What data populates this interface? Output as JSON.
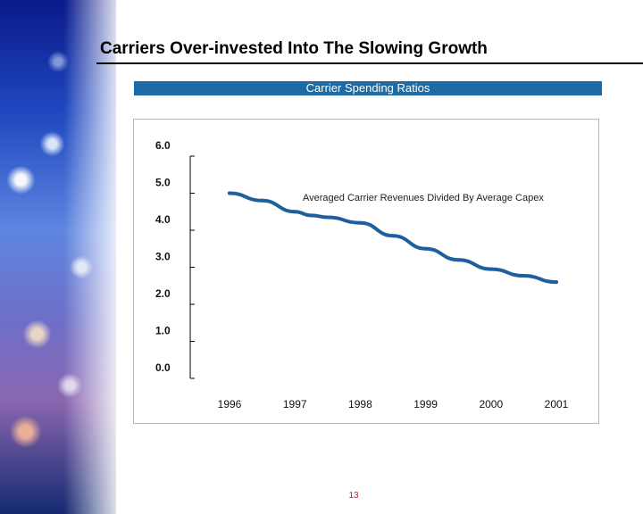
{
  "slide": {
    "title": "Carriers Over-invested Into The Slowing Growth",
    "header": "Carrier Spending Ratios",
    "page_number": "13"
  },
  "colors": {
    "header_bar": "#1e6aa5",
    "series_line": "#1e5f9e",
    "page_number": "#d31a1a"
  },
  "chart_data": {
    "type": "line",
    "title": "Carrier Spending Ratios",
    "xlabel": "",
    "ylabel": "",
    "x_labels": [
      "1996",
      "1997",
      "1998",
      "1999",
      "2000",
      "2001"
    ],
    "y_ticks": [
      "6.0",
      "5.0",
      "4.0",
      "3.0",
      "2.0",
      "1.0",
      "0.0"
    ],
    "ylim": [
      0,
      6
    ],
    "xlim": [
      1996,
      2001
    ],
    "annotation": "Averaged Carrier Revenues Divided By Average Capex",
    "grid": false,
    "legend": "none",
    "series": [
      {
        "x": [
          1996.0,
          1996.5,
          1997.0,
          1997.25,
          1997.5,
          1998.0,
          1998.5,
          1999.0,
          1999.5,
          2000.0,
          2000.5,
          2001.0
        ],
        "values": [
          5.0,
          4.8,
          4.5,
          4.4,
          4.35,
          4.2,
          3.85,
          3.5,
          3.2,
          2.95,
          2.77,
          2.6
        ]
      }
    ]
  }
}
